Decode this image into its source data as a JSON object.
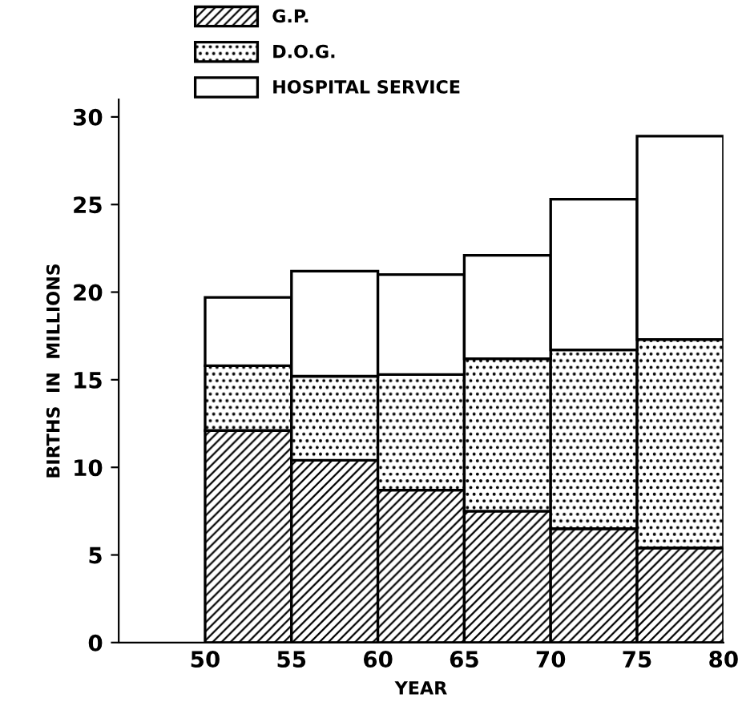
{
  "chart_data": {
    "type": "bar",
    "xlabel": "YEAR",
    "ylabel": "BIRTHS  IN  MILLIONS",
    "x": [
      52.5,
      57.5,
      62.5,
      67.5,
      72.5,
      77.5
    ],
    "stacked": true,
    "series": [
      {
        "name": "G.P.",
        "color": "#000000",
        "values": [
          12.1,
          10.4,
          8.7,
          7.5,
          6.5,
          5.4
        ]
      },
      {
        "name": "D.O.G.",
        "color": "#000000",
        "values": [
          3.7,
          4.8,
          6.6,
          8.7,
          10.2,
          11.9
        ]
      },
      {
        "name": "HOSPITAL SERVICE",
        "color": "#ffffff",
        "values": [
          3.9,
          6.0,
          5.7,
          5.9,
          8.6,
          11.6
        ]
      }
    ],
    "xlim": [
      45,
      80
    ],
    "xticks": [
      50,
      55,
      60,
      65,
      70,
      75,
      80
    ],
    "ylim": [
      0,
      31
    ],
    "yticks": [
      0,
      5,
      10,
      15,
      20,
      25,
      30
    ],
    "grid": false,
    "legend": "top left"
  }
}
